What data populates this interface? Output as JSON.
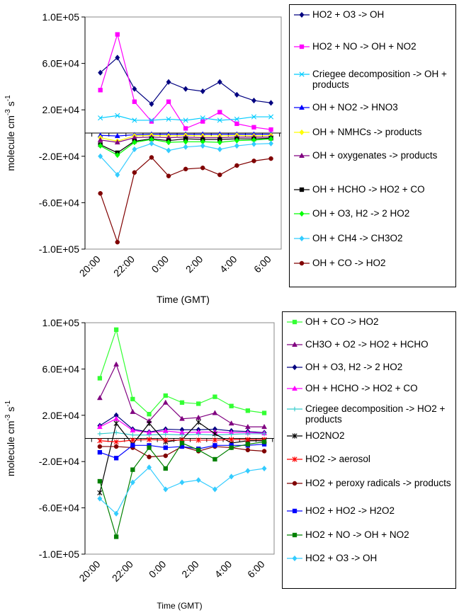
{
  "chart_data": [
    {
      "type": "line",
      "title": "",
      "xlabel": "Time (GMT)",
      "ylabel": "molecule cm-3 s-1",
      "ylabel_parts": {
        "base": "molecule cm",
        "exp1": "-3",
        "mid": " s",
        "exp2": "-1"
      },
      "x": [
        20.5,
        21.5,
        22.5,
        23.5,
        24.5,
        25.5,
        26.5,
        27.5,
        28.5,
        29.5,
        30.5
      ],
      "xticks": [
        {
          "value": 20,
          "label": "20:00"
        },
        {
          "value": 22,
          "label": "22:00"
        },
        {
          "value": 24,
          "label": "0:00"
        },
        {
          "value": 26,
          "label": "2:00"
        },
        {
          "value": 28,
          "label": "4:00"
        },
        {
          "value": 30,
          "label": "6:00"
        }
      ],
      "xlim": [
        19.6,
        31.1
      ],
      "ylim": [
        -100000,
        100000
      ],
      "yticks": [
        {
          "value": 100000,
          "label": "1.0E+05"
        },
        {
          "value": 60000,
          "label": "6.0E+04"
        },
        {
          "value": 20000,
          "label": "2.0E+04"
        },
        {
          "value": -20000,
          "label": "-2.0E+04"
        },
        {
          "value": -60000,
          "label": "-6.0E+04"
        },
        {
          "value": -100000,
          "label": "-1.0E+05"
        }
      ],
      "grid": false,
      "legend_position": "right",
      "series": [
        {
          "name": "HO2 + O3 -> OH",
          "color": "#000080",
          "marker": "diamond",
          "values": [
            52000,
            65000,
            38000,
            25000,
            44000,
            38000,
            36000,
            44000,
            33000,
            28000,
            26000
          ]
        },
        {
          "name": "HO2 + NO -> OH + NO2",
          "color": "#FF00FF",
          "marker": "square",
          "values": [
            37000,
            85000,
            27000,
            10000,
            27000,
            4000,
            10000,
            18000,
            8000,
            5000,
            3000
          ]
        },
        {
          "name": "Criegee decomposition -> OH + products",
          "color": "#00CCFF",
          "marker": "x",
          "values": [
            13000,
            15000,
            11000,
            11000,
            12000,
            11000,
            13000,
            11000,
            12000,
            14000,
            14000
          ]
        },
        {
          "name": "OH + NO2 -> HNO3",
          "color": "#0000FF",
          "marker": "triangle",
          "values": [
            -2000,
            -2500,
            -1500,
            -1000,
            -1000,
            -1000,
            -1000,
            -1000,
            -1000,
            -1000,
            -1000
          ]
        },
        {
          "name": "OH + NMHCs -> products",
          "color": "#FFFF00",
          "marker": "diamond",
          "values": [
            -4000,
            -7000,
            -2500,
            -2000,
            -2500,
            -2000,
            -2500,
            -2500,
            -2000,
            -2500,
            -2000
          ]
        },
        {
          "name": "OH + oxygenates -> products",
          "color": "#800080",
          "marker": "triangle",
          "values": [
            -6000,
            -8000,
            -4000,
            -3500,
            -4000,
            -3500,
            -4000,
            -4000,
            -3500,
            -3500,
            -3500
          ]
        },
        {
          "name": "OH + HCHO -> HO2 + CO",
          "color": "#000000",
          "marker": "square",
          "values": [
            -10000,
            -17000,
            -7000,
            -5000,
            -6500,
            -5000,
            -5500,
            -5500,
            -5000,
            -5000,
            -4500
          ]
        },
        {
          "name": "OH + O3, H2 -> 2 HO2",
          "color": "#00FF00",
          "marker": "diamond",
          "values": [
            -11000,
            -19000,
            -8000,
            -5500,
            -8000,
            -7500,
            -7500,
            -8000,
            -6500,
            -6000,
            -5000
          ]
        },
        {
          "name": "OH + CH4 -> CH3O2",
          "color": "#33CCFF",
          "marker": "diamond",
          "values": [
            -20000,
            -36000,
            -14000,
            -9000,
            -15000,
            -12000,
            -11000,
            -14000,
            -11000,
            -9500,
            -9000
          ]
        },
        {
          "name": "OH + CO -> HO2",
          "color": "#800000",
          "marker": "circle",
          "values": [
            -52000,
            -94000,
            -34000,
            -21000,
            -37000,
            -31000,
            -30000,
            -36000,
            -28000,
            -24000,
            -22000
          ]
        }
      ]
    },
    {
      "type": "line",
      "title": "",
      "xlabel": "Time (GMT)",
      "ylabel": "molecule cm-3 s-1",
      "ylabel_parts": {
        "base": "molecule cm",
        "exp1": "-3",
        "mid": " s",
        "exp2": "-1"
      },
      "x": [
        20.5,
        21.5,
        22.5,
        23.5,
        24.5,
        25.5,
        26.5,
        27.5,
        28.5,
        29.5,
        30.5
      ],
      "xticks": [
        {
          "value": 20,
          "label": "20:00"
        },
        {
          "value": 22,
          "label": "22:00"
        },
        {
          "value": 24,
          "label": "0:00"
        },
        {
          "value": 26,
          "label": "2:00"
        },
        {
          "value": 28,
          "label": "4:00"
        },
        {
          "value": 30,
          "label": "6:00"
        }
      ],
      "xlim": [
        19.6,
        31.1
      ],
      "ylim": [
        -100000,
        100000
      ],
      "yticks": [
        {
          "value": 100000,
          "label": "1.0E+05"
        },
        {
          "value": 60000,
          "label": "6.0E+04"
        },
        {
          "value": 20000,
          "label": "2.0E+04"
        },
        {
          "value": -20000,
          "label": "-2.0E+04"
        },
        {
          "value": -60000,
          "label": "-6.0E+04"
        },
        {
          "value": -100000,
          "label": "-1.0E+05"
        }
      ],
      "grid": false,
      "legend_position": "right",
      "series": [
        {
          "name": "OH + CO -> HO2",
          "color": "#33FF33",
          "marker": "square",
          "values": [
            52000,
            94000,
            34000,
            21000,
            37000,
            31000,
            30000,
            36000,
            28000,
            24000,
            22000
          ]
        },
        {
          "name": "CH3O + O2 -> HO2 + HCHO",
          "color": "#800080",
          "marker": "triangle",
          "values": [
            35000,
            64000,
            23000,
            15000,
            31000,
            17000,
            18000,
            22000,
            13000,
            10000,
            10000
          ]
        },
        {
          "name": "OH + O3, H2 -> 2 HO2",
          "color": "#000080",
          "marker": "diamond",
          "values": [
            11000,
            20000,
            8000,
            5500,
            8000,
            7500,
            7500,
            8000,
            6500,
            6000,
            5000
          ]
        },
        {
          "name": "OH + HCHO -> HO2 + CO",
          "color": "#FF00FF",
          "marker": "triangle",
          "values": [
            10000,
            17000,
            7000,
            5000,
            6500,
            5000,
            5500,
            5500,
            5000,
            5000,
            4500
          ]
        },
        {
          "name": "Criegee decomposition -> HO2 + products",
          "color": "#33CCCC",
          "marker": "plus",
          "values": [
            4000,
            5000,
            3000,
            3000,
            3500,
            3000,
            3500,
            3000,
            3500,
            4000,
            4000
          ]
        },
        {
          "name": "HO2NO2",
          "color": "#000000",
          "marker": "star",
          "values": [
            -47000,
            13000,
            -5000,
            13000,
            -3000,
            -1000,
            14000,
            4000,
            -4000,
            -2000,
            -2000
          ]
        },
        {
          "name": "HO2 -> aerosol",
          "color": "#FF0000",
          "marker": "star",
          "values": [
            -2000,
            -3000,
            -1500,
            -1000,
            -1500,
            -1500,
            -1500,
            -1500,
            -1000,
            -1000,
            -1000
          ]
        },
        {
          "name": "HO2 + peroxy radicals -> products",
          "color": "#800000",
          "marker": "circle",
          "values": [
            -7000,
            -7000,
            -8000,
            -16000,
            -15000,
            -7000,
            -11000,
            -7000,
            -8000,
            -10000,
            -11000
          ]
        },
        {
          "name": "HO2 + HO2 -> H2O2",
          "color": "#0000FF",
          "marker": "square",
          "values": [
            -12000,
            -17000,
            -6000,
            -6000,
            -8000,
            -7000,
            -9000,
            -6000,
            -6000,
            -6000,
            -5000
          ]
        },
        {
          "name": "HO2 + NO -> OH + NO2",
          "color": "#008000",
          "marker": "square",
          "values": [
            -37000,
            -85000,
            -27000,
            -8000,
            -26000,
            -4000,
            -10000,
            -18000,
            -8000,
            -5000,
            -3000
          ]
        },
        {
          "name": "HO2 + O3 -> OH",
          "color": "#33CCFF",
          "marker": "diamond",
          "values": [
            -52000,
            -65000,
            -38000,
            -25000,
            -44000,
            -38000,
            -36000,
            -44000,
            -33000,
            -28000,
            -26000
          ]
        }
      ]
    }
  ]
}
